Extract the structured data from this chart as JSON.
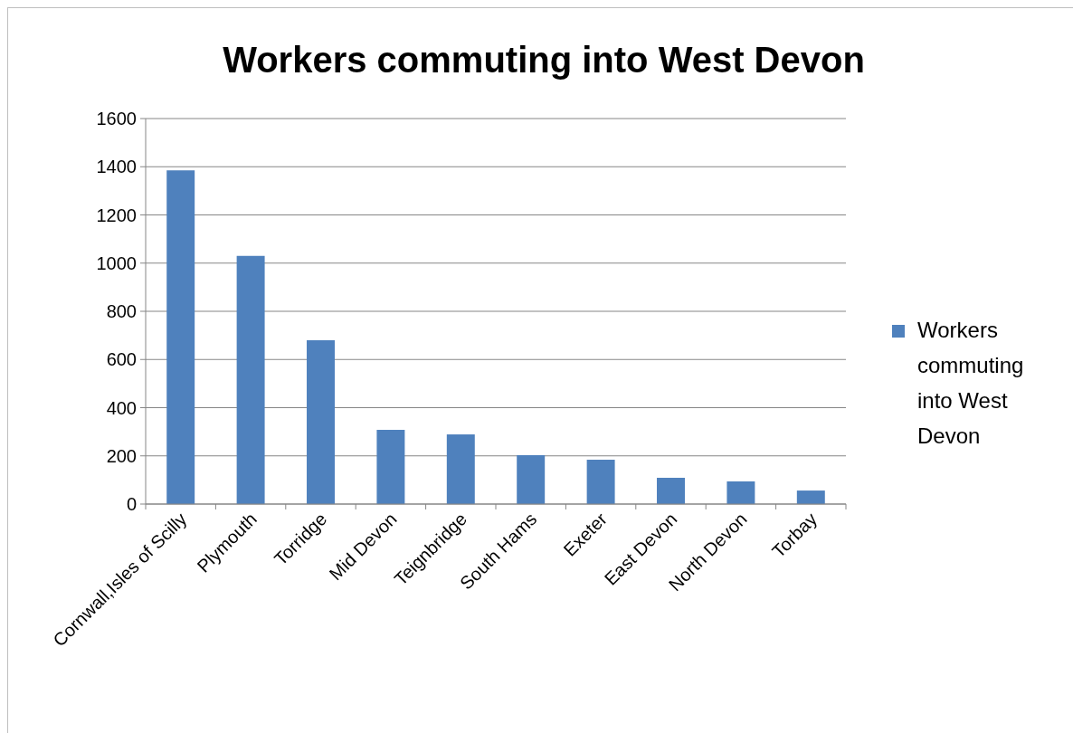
{
  "chart_data": {
    "type": "bar",
    "title": "Workers commuting into West Devon",
    "categories": [
      "Cornwall,Isles of Scilly",
      "Plymouth",
      "Torridge",
      "Mid Devon",
      "Teignbridge",
      "South Hams",
      "Exeter",
      "East Devon",
      "North Devon",
      "Torbay"
    ],
    "series": [
      {
        "name": "Workers commuting into West Devon",
        "color": "#4f81bd",
        "values": [
          1385,
          1030,
          680,
          308,
          289,
          203,
          184,
          109,
          94,
          56
        ]
      }
    ],
    "ylim": [
      0,
      1600
    ],
    "yticks": [
      0,
      200,
      400,
      600,
      800,
      1000,
      1200,
      1400,
      1600
    ],
    "grid": "y",
    "legend": "right"
  }
}
